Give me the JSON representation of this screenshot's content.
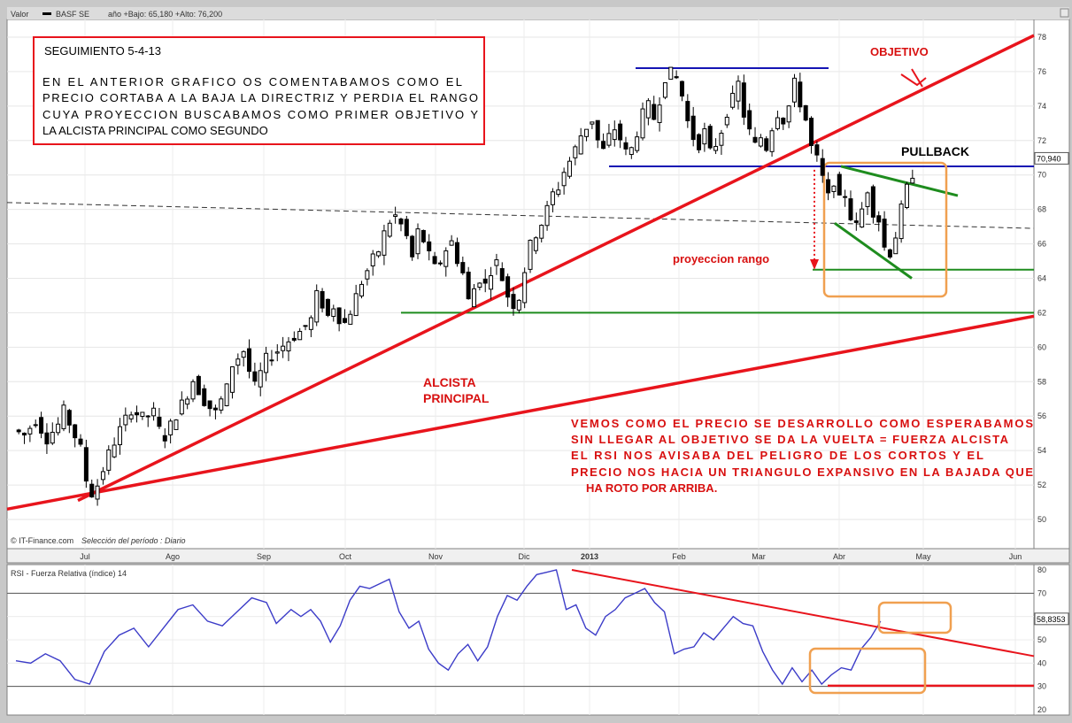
{
  "header": {
    "valor_label": "Valor",
    "symbol": "BASF SE",
    "range_text": "año +Bajo: 65,180 +Alto: 76,200"
  },
  "footer": {
    "credit": "© IT-Finance.com",
    "period_text": "Selección del período : Diario"
  },
  "rsi_panel": {
    "title": "RSI - Fuerza Relativa (índice) 14"
  },
  "annotations": {
    "box_title": "SEGUIMIENTO  5-4-13",
    "box_lines": [
      "EN EL  ANTERIOR  GRAFICO  OS  COMENTABAMOS  COMO  EL",
      "PRECIO CORTABA A LA BAJA LA  DIRECTRIZ  Y  PERDIA  EL  RANGO",
      "CUYA  PROYECCION  BUSCABAMOS  COMO  PRIMER  OBJETIVO  Y",
      "LA  ALCISTA  PRINCIPAL  COMO  SEGUNDO"
    ],
    "objetivo": "OBJETIVO",
    "pullback": "PULLBACK",
    "proyeccion": "proyeccion  rango",
    "alcista_1": "ALCISTA",
    "alcista_2": "PRINCIPAL",
    "comment_lines": [
      "VEMOS  COMO  EL  PRECIO  SE  DESARROLLO  COMO  ESPERABAMOS",
      "SIN  LLEGAR  AL  OBJETIVO SE  DA LA  VUELTA  =  FUERZA  ALCISTA",
      "EL  RSI  NOS  AVISABA   DEL  PELIGRO  DE  LOS  CORTOS  Y  EL",
      "PRECIO NOS  HACIA  UN  TRIANGULO  EXPANSIVO  EN  LA  BAJADA  QUE",
      "HA  ROTO  POR  ARRIBA."
    ]
  },
  "colors": {
    "price": "#000000",
    "trend_red": "#e8141c",
    "range_blue": "#1414b4",
    "support_green": "#1e8c1e",
    "box_orange": "#f0a050",
    "rsi_line": "#3c3cc8",
    "annotation_red": "#d81010"
  },
  "chart_data": [
    {
      "type": "candlestick",
      "symbol": "BASF SE",
      "ylim": [
        48,
        79
      ],
      "yticks": [
        50,
        52,
        54,
        56,
        58,
        60,
        62,
        64,
        66,
        68,
        70,
        72,
        74,
        76,
        78
      ],
      "xticks": [
        "Jul",
        "Ago",
        "Sep",
        "Oct",
        "Nov",
        "Dic",
        "2013",
        "Feb",
        "Mar",
        "Abr",
        "May",
        "Jun"
      ],
      "last_price": "70,940",
      "close_path": [
        [
          0,
          55.2
        ],
        [
          2,
          54.9
        ],
        [
          4,
          55.8
        ],
        [
          6,
          54.7
        ],
        [
          8,
          55.5
        ],
        [
          9,
          56.3
        ],
        [
          10,
          55.6
        ],
        [
          12,
          54.1
        ],
        [
          13,
          52.3
        ],
        [
          14,
          51.5
        ],
        [
          15,
          52.0
        ],
        [
          17,
          53.8
        ],
        [
          19,
          55.2
        ],
        [
          21,
          56.4
        ],
        [
          23,
          55.9
        ],
        [
          25,
          56.2
        ],
        [
          26,
          55.2
        ],
        [
          27,
          54.8
        ],
        [
          29,
          56.1
        ],
        [
          31,
          57.3
        ],
        [
          32,
          58.1
        ],
        [
          34,
          56.9
        ],
        [
          35,
          56.5
        ],
        [
          36,
          56.2
        ],
        [
          38,
          57.6
        ],
        [
          39,
          59.0
        ],
        [
          41,
          59.8
        ],
        [
          42,
          58.6
        ],
        [
          43,
          57.7
        ],
        [
          45,
          59.3
        ],
        [
          47,
          59.8
        ],
        [
          49,
          60.4
        ],
        [
          51,
          60.9
        ],
        [
          53,
          61.6
        ],
        [
          54,
          63.0
        ],
        [
          55,
          62.5
        ],
        [
          56,
          61.8
        ],
        [
          57,
          62.4
        ],
        [
          58,
          61.7
        ],
        [
          59,
          61.4
        ],
        [
          60,
          62.1
        ],
        [
          62,
          63.8
        ],
        [
          64,
          65.1
        ],
        [
          65,
          65.6
        ],
        [
          66,
          66.6
        ],
        [
          67,
          67.3
        ],
        [
          68,
          67.6
        ],
        [
          69,
          67.1
        ],
        [
          70,
          66.4
        ],
        [
          71,
          65.2
        ],
        [
          72,
          66.7
        ],
        [
          73,
          66.2
        ],
        [
          74,
          65.3
        ],
        [
          75,
          64.6
        ],
        [
          76,
          65.0
        ],
        [
          77,
          65.7
        ],
        [
          78,
          66.1
        ],
        [
          79,
          65.1
        ],
        [
          80,
          64.3
        ],
        [
          81,
          62.7
        ],
        [
          82,
          63.4
        ],
        [
          83,
          64.0
        ],
        [
          84,
          63.6
        ],
        [
          85,
          64.5
        ],
        [
          86,
          64.9
        ],
        [
          87,
          64.0
        ],
        [
          88,
          63.0
        ],
        [
          89,
          62.5
        ],
        [
          90,
          62.9
        ],
        [
          91,
          64.5
        ],
        [
          92,
          65.9
        ],
        [
          93,
          66.6
        ],
        [
          94,
          67.2
        ],
        [
          95,
          68.0
        ],
        [
          96,
          68.9
        ],
        [
          97,
          69.3
        ],
        [
          98,
          70.2
        ],
        [
          99,
          70.8
        ],
        [
          100,
          71.5
        ],
        [
          101,
          72.3
        ],
        [
          102,
          72.8
        ],
        [
          103,
          73.2
        ],
        [
          104,
          72.0
        ],
        [
          105,
          71.4
        ],
        [
          106,
          72.2
        ],
        [
          107,
          72.7
        ],
        [
          108,
          72.1
        ],
        [
          109,
          71.3
        ],
        [
          110,
          71.5
        ],
        [
          111,
          72.5
        ],
        [
          112,
          73.5
        ],
        [
          113,
          74.0
        ],
        [
          114,
          73.3
        ],
        [
          115,
          74.4
        ],
        [
          116,
          75.7
        ],
        [
          117,
          75.9
        ],
        [
          118,
          75.6
        ],
        [
          119,
          74.6
        ],
        [
          120,
          73.1
        ],
        [
          121,
          72.2
        ],
        [
          122,
          71.8
        ],
        [
          123,
          72.5
        ],
        [
          124,
          71.3
        ],
        [
          125,
          71.8
        ],
        [
          126,
          72.6
        ],
        [
          127,
          73.7
        ],
        [
          128,
          74.4
        ],
        [
          129,
          75.3
        ],
        [
          130,
          73.5
        ],
        [
          131,
          72.5
        ],
        [
          132,
          71.7
        ],
        [
          133,
          72.2
        ],
        [
          134,
          71.6
        ],
        [
          135,
          72.8
        ],
        [
          136,
          73.6
        ],
        [
          137,
          73.2
        ],
        [
          138,
          74.0
        ],
        [
          139,
          75.3
        ],
        [
          140,
          74.2
        ],
        [
          141,
          73.2
        ],
        [
          142,
          71.6
        ],
        [
          143,
          70.9
        ],
        [
          144,
          69.8
        ],
        [
          145,
          68.7
        ],
        [
          146,
          69.7
        ],
        [
          147,
          68.5
        ],
        [
          148,
          68.9
        ],
        [
          149,
          67.6
        ],
        [
          150,
          67.0
        ],
        [
          151,
          68.0
        ],
        [
          152,
          69.2
        ],
        [
          153,
          67.9
        ],
        [
          154,
          67.4
        ],
        [
          155,
          65.8
        ],
        [
          156,
          65.5
        ],
        [
          157,
          66.5
        ],
        [
          158,
          68.0
        ],
        [
          159,
          69.2
        ],
        [
          160,
          70.1
        ]
      ],
      "close_path_x_units": "trading-day index",
      "levels": {
        "range_top": 76.2,
        "range_bottom": 70.5,
        "support_62": 62.0,
        "projection_64_5": 64.5
      }
    },
    {
      "type": "line",
      "name": "RSI - Fuerza Relativa (índice) 14",
      "ylim": [
        20,
        80
      ],
      "yticks": [
        20,
        30,
        40,
        50,
        60,
        70,
        80
      ],
      "last_value": "58,8353",
      "values": [
        [
          0,
          41
        ],
        [
          3,
          40
        ],
        [
          6,
          44
        ],
        [
          9,
          41
        ],
        [
          12,
          33
        ],
        [
          15,
          31
        ],
        [
          18,
          45
        ],
        [
          21,
          52
        ],
        [
          24,
          55
        ],
        [
          27,
          47
        ],
        [
          30,
          55
        ],
        [
          33,
          63
        ],
        [
          36,
          65
        ],
        [
          39,
          58
        ],
        [
          42,
          56
        ],
        [
          45,
          62
        ],
        [
          48,
          68
        ],
        [
          51,
          66
        ],
        [
          53,
          57
        ],
        [
          56,
          63
        ],
        [
          58,
          60
        ],
        [
          60,
          63
        ],
        [
          62,
          58
        ],
        [
          64,
          49
        ],
        [
          66,
          56
        ],
        [
          68,
          67
        ],
        [
          70,
          73
        ],
        [
          72,
          72
        ],
        [
          74,
          74
        ],
        [
          76,
          76
        ],
        [
          78,
          62
        ],
        [
          80,
          55
        ],
        [
          82,
          58
        ],
        [
          84,
          46
        ],
        [
          86,
          40
        ],
        [
          88,
          37
        ],
        [
          90,
          44
        ],
        [
          92,
          48
        ],
        [
          94,
          41
        ],
        [
          96,
          47
        ],
        [
          98,
          60
        ],
        [
          100,
          69
        ],
        [
          102,
          67
        ],
        [
          104,
          73
        ],
        [
          106,
          78
        ],
        [
          108,
          79
        ],
        [
          110,
          80
        ],
        [
          112,
          63
        ],
        [
          114,
          65
        ],
        [
          116,
          55
        ],
        [
          118,
          52
        ],
        [
          120,
          60
        ],
        [
          122,
          63
        ],
        [
          124,
          68
        ],
        [
          126,
          70
        ],
        [
          128,
          72
        ],
        [
          130,
          66
        ],
        [
          132,
          62
        ],
        [
          134,
          44
        ],
        [
          136,
          46
        ],
        [
          138,
          47
        ],
        [
          140,
          53
        ],
        [
          142,
          50
        ],
        [
          144,
          55
        ],
        [
          146,
          60
        ],
        [
          148,
          57
        ],
        [
          150,
          56
        ],
        [
          152,
          45
        ],
        [
          154,
          37
        ],
        [
          156,
          31
        ],
        [
          158,
          38
        ],
        [
          160,
          32
        ],
        [
          162,
          37
        ],
        [
          164,
          31
        ],
        [
          166,
          35
        ],
        [
          168,
          38
        ],
        [
          170,
          37
        ],
        [
          172,
          46
        ],
        [
          174,
          51
        ],
        [
          176,
          58
        ]
      ]
    }
  ]
}
